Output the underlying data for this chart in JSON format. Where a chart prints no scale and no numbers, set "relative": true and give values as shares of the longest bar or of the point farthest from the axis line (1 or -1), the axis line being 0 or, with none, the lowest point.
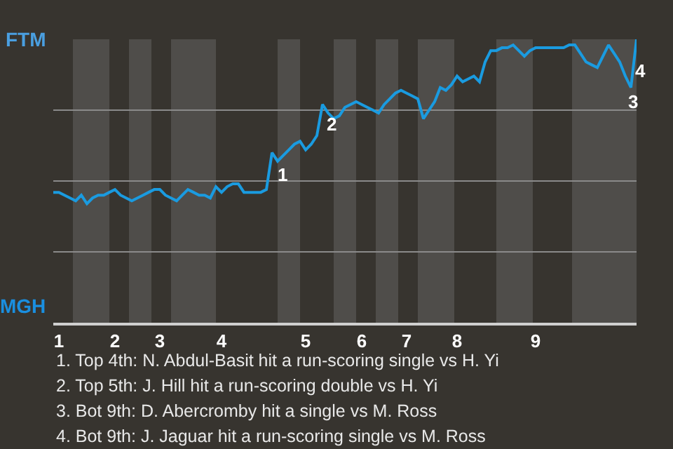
{
  "chart_data": {
    "type": "line",
    "relative": true,
    "categories": [
      null,
      "1",
      null,
      null,
      null,
      null,
      null,
      null,
      null,
      null,
      null,
      "2",
      null,
      null,
      null,
      null,
      null,
      null,
      null,
      "3",
      null,
      null,
      null,
      null,
      null,
      null,
      null,
      null,
      null,
      null,
      "4",
      null,
      null,
      null,
      null,
      null,
      null,
      null,
      null,
      null,
      null,
      null,
      null,
      null,
      null,
      "5",
      null,
      null,
      null,
      null,
      null,
      null,
      null,
      null,
      null,
      "6",
      null,
      null,
      null,
      null,
      null,
      null,
      null,
      "7",
      null,
      null,
      null,
      null,
      null,
      null,
      null,
      null,
      "8",
      null,
      null,
      null,
      null,
      null,
      null,
      null,
      null,
      null,
      null,
      null,
      null,
      null,
      "9",
      null,
      null,
      null,
      null,
      null,
      null,
      null,
      null,
      null,
      null,
      null,
      null,
      null,
      null,
      null,
      null,
      null,
      null
    ],
    "series": [
      {
        "color": "#1a9be0",
        "values": [
          0.46,
          0.46,
          0.45,
          0.44,
          0.43,
          0.45,
          0.42,
          0.44,
          0.45,
          0.45,
          0.46,
          0.47,
          0.45,
          0.44,
          0.43,
          0.44,
          0.45,
          0.46,
          0.47,
          0.47,
          0.45,
          0.44,
          0.43,
          0.45,
          0.47,
          0.46,
          0.45,
          0.45,
          0.44,
          0.48,
          0.46,
          0.48,
          0.49,
          0.49,
          0.46,
          0.46,
          0.46,
          0.46,
          0.47,
          0.6,
          0.57,
          0.59,
          0.61,
          0.63,
          0.64,
          0.61,
          0.63,
          0.66,
          0.77,
          0.74,
          0.72,
          0.73,
          0.76,
          0.77,
          0.78,
          0.77,
          0.76,
          0.75,
          0.74,
          0.77,
          0.79,
          0.81,
          0.82,
          0.81,
          0.8,
          0.79,
          0.72,
          0.75,
          0.78,
          0.83,
          0.82,
          0.84,
          0.87,
          0.85,
          0.86,
          0.87,
          0.85,
          0.92,
          0.96,
          0.96,
          0.97,
          0.97,
          0.98,
          0.96,
          0.94,
          0.96,
          0.97,
          0.97,
          0.97,
          0.97,
          0.97,
          0.97,
          0.98,
          0.98,
          0.95,
          0.92,
          0.91,
          0.9,
          0.94,
          0.98,
          0.95,
          0.92,
          0.87,
          0.83,
          1
        ]
      }
    ],
    "grid": "y",
    "marker": "none",
    "line_style": "solid",
    "annotations": [
      "FTM",
      "MGH",
      "1",
      "2",
      "3",
      "4",
      "1. Top 4th: N. Abdul-Basit hit a run-scoring single vs H. Yi",
      "2. Top 5th: J. Hill hit a run-scoring double vs H. Yi",
      "3. Bot 9th: D. Abercromby hit a single vs M. Ross",
      "4. Bot 9th: J. Jaguar hit a run-scoring single vs M. Ross"
    ]
  }
}
